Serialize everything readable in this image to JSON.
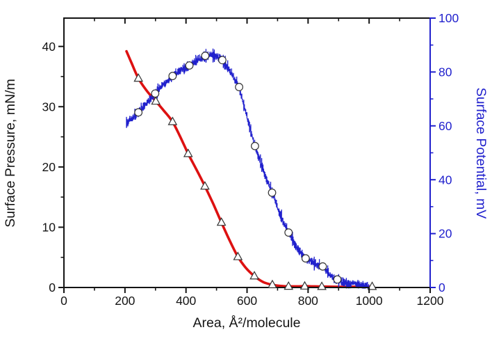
{
  "figure": {
    "background": "#ffffff",
    "x_axis": {
      "title": "Area, Å²/molecule",
      "major_ticks": [
        0,
        200,
        400,
        600,
        800,
        1000,
        1200
      ],
      "minor_ticks": [
        100,
        300,
        500,
        700,
        900,
        1100
      ],
      "color": "#141414"
    },
    "y_left": {
      "title": "Surface Pressure, mN/m",
      "major_ticks": [
        0,
        10,
        20,
        30,
        40
      ],
      "minor_ticks": [
        5,
        15,
        25,
        35
      ],
      "color": "#141414"
    },
    "y_right": {
      "title": "Surface Potential, mV",
      "major_ticks": [
        0,
        20,
        40,
        60,
        80,
        100
      ],
      "minor_ticks": [
        10,
        30,
        50,
        70,
        90
      ],
      "color": "#2121cd"
    }
  },
  "chart_data": {
    "type": "line",
    "title": "",
    "xlabel": "Area, Å²/molecule",
    "ylabel_left": "Surface Pressure, mN/m",
    "ylabel_right": "Surface Potential, mV",
    "xlim": [
      0,
      1200
    ],
    "ylim_left": [
      0,
      44.7
    ],
    "ylim_right": [
      0,
      100
    ],
    "grid": false,
    "legend": "none",
    "series": [
      {
        "name": "surface-pressure",
        "axis": "left",
        "units": "mN/m",
        "color": "#dd1111",
        "line_width": 3.6,
        "marker": "triangle-open",
        "curve": [
          [
            205,
            39.2
          ],
          [
            222,
            37.2
          ],
          [
            244,
            34.7
          ],
          [
            272,
            32.6
          ],
          [
            301,
            30.9
          ],
          [
            328,
            29.3
          ],
          [
            356,
            27.5
          ],
          [
            382,
            24.9
          ],
          [
            407,
            22.2
          ],
          [
            435,
            19.5
          ],
          [
            462,
            16.8
          ],
          [
            490,
            13.8
          ],
          [
            516,
            10.8
          ],
          [
            543,
            7.8
          ],
          [
            570,
            5.1
          ],
          [
            597,
            3.2
          ],
          [
            624,
            1.9
          ],
          [
            653,
            0.9
          ],
          [
            683,
            0.45
          ],
          [
            710,
            0.25
          ],
          [
            736,
            0.18
          ],
          [
            762,
            0.18
          ],
          [
            789,
            0.22
          ],
          [
            815,
            0.18
          ],
          [
            845,
            0.15
          ],
          [
            900,
            0.12
          ],
          [
            955,
            0.12
          ],
          [
            1010,
            0.15
          ]
        ],
        "markers": [
          [
            244,
            34.7
          ],
          [
            301,
            30.9
          ],
          [
            356,
            27.5
          ],
          [
            407,
            22.2
          ],
          [
            462,
            16.8
          ],
          [
            516,
            10.8
          ],
          [
            570,
            5.1
          ],
          [
            624,
            1.9
          ],
          [
            683,
            0.45
          ],
          [
            736,
            0.18
          ],
          [
            789,
            0.22
          ],
          [
            845,
            0.15
          ],
          [
            1010,
            0.15
          ]
        ]
      },
      {
        "name": "surface-potential",
        "axis": "right",
        "units": "mV",
        "color": "#2121cd",
        "line_width": 1.3,
        "noise_mv": 1.1,
        "marker": "circle-open",
        "curve": [
          [
            205,
            61
          ],
          [
            225,
            63.2
          ],
          [
            244,
            65
          ],
          [
            270,
            68.5
          ],
          [
            299,
            72
          ],
          [
            325,
            75.2
          ],
          [
            356,
            78.5
          ],
          [
            385,
            81
          ],
          [
            411,
            82.4
          ],
          [
            438,
            84.6
          ],
          [
            463,
            86
          ],
          [
            478,
            86.5
          ],
          [
            495,
            86
          ],
          [
            519,
            84.4
          ],
          [
            545,
            80.5
          ],
          [
            574,
            74.4
          ],
          [
            600,
            63.5
          ],
          [
            626,
            52.5
          ],
          [
            655,
            43
          ],
          [
            682,
            35.2
          ],
          [
            710,
            26.8
          ],
          [
            736,
            20.4
          ],
          [
            762,
            15
          ],
          [
            792,
            10.8
          ],
          [
            812,
            9.6
          ],
          [
            830,
            8.4
          ],
          [
            848,
            7.8
          ],
          [
            862,
            6
          ],
          [
            880,
            4
          ],
          [
            896,
            3
          ],
          [
            912,
            1.8
          ],
          [
            935,
            1.3
          ],
          [
            955,
            1.6
          ],
          [
            975,
            0.8
          ],
          [
            1000,
            0.6
          ]
        ],
        "markers": [
          [
            244,
            65
          ],
          [
            299,
            72
          ],
          [
            356,
            78.5
          ],
          [
            411,
            82.4
          ],
          [
            463,
            86
          ],
          [
            519,
            84.4
          ],
          [
            574,
            74.4
          ],
          [
            626,
            52.5
          ],
          [
            682,
            35.2
          ],
          [
            736,
            20.4
          ],
          [
            792,
            10.8
          ],
          [
            848,
            7.8
          ],
          [
            896,
            3
          ]
        ]
      }
    ],
    "marker_edge_color": "#333333",
    "marker_fill_color": "#ffffff"
  }
}
